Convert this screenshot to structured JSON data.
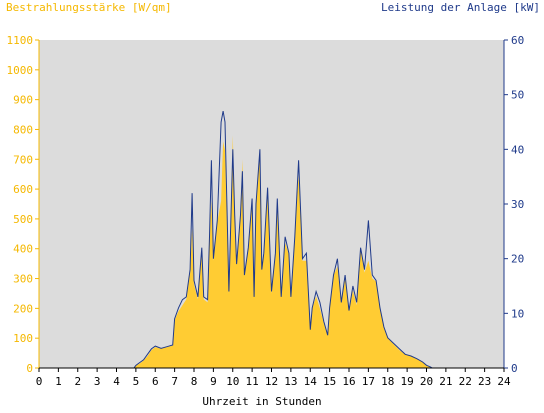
{
  "chart_data": {
    "type": "area",
    "title_left": "Bestrahlungsstärke [W/qm]",
    "title_right": "Leistung der Anlage [kW]",
    "xlabel": "Uhrzeit in Stunden",
    "x_ticks": [
      "0",
      "1",
      "2",
      "3",
      "4",
      "5",
      "6",
      "7",
      "8",
      "9",
      "10",
      "11",
      "12",
      "13",
      "14",
      "15",
      "16",
      "17",
      "18",
      "19",
      "20",
      "21",
      "22",
      "23",
      "24"
    ],
    "xlim": [
      0,
      24
    ],
    "y_left": {
      "label": "Bestrahlungsstärke [W/qm]",
      "ylim": [
        0,
        1100
      ],
      "ticks": [
        "0",
        "100",
        "200",
        "300",
        "400",
        "500",
        "600",
        "700",
        "800",
        "900",
        "1000",
        "1100"
      ]
    },
    "y_right": {
      "label": "Leistung der Anlage [kW]",
      "ylim": [
        0,
        60
      ],
      "ticks": [
        "0",
        "10",
        "20",
        "30",
        "40",
        "50",
        "60"
      ]
    },
    "grid": false,
    "colors": {
      "irradiance_fill": "#ffcc33",
      "power_line": "#1f3a8a",
      "plot_bg": "#dcdcdc",
      "left_axis_text": "#f5b800",
      "right_axis_text": "#1f3a8a",
      "x_axis_text": "#000000"
    },
    "series": [
      {
        "name": "Bestrahlungsstärke [W/qm]",
        "axis": "left",
        "style": "filled-area",
        "x": [
          0,
          4.9,
          5.0,
          5.2,
          5.4,
          5.6,
          5.8,
          6.0,
          6.3,
          6.6,
          6.9,
          7.0,
          7.2,
          7.4,
          7.6,
          7.8,
          7.9,
          8.0,
          8.2,
          8.4,
          8.5,
          8.7,
          8.8,
          8.9,
          9.0,
          9.2,
          9.4,
          9.5,
          9.6,
          9.8,
          10.0,
          10.1,
          10.2,
          10.4,
          10.5,
          10.6,
          10.8,
          11.0,
          11.1,
          11.2,
          11.4,
          11.5,
          11.6,
          11.8,
          12.0,
          12.2,
          12.3,
          12.5,
          12.7,
          12.9,
          13.0,
          13.2,
          13.4,
          13.6,
          13.8,
          14.0,
          14.1,
          14.3,
          14.5,
          14.7,
          14.9,
          15.0,
          15.2,
          15.4,
          15.6,
          15.8,
          16.0,
          16.2,
          16.4,
          16.6,
          16.8,
          17.0,
          17.2,
          17.4,
          17.6,
          17.8,
          18.0,
          18.3,
          18.6,
          18.9,
          19.2,
          19.5,
          19.8,
          20.0,
          20.2,
          20.3,
          24
        ],
        "values": [
          0,
          0,
          8,
          15,
          25,
          40,
          60,
          70,
          65,
          70,
          75,
          160,
          190,
          210,
          230,
          320,
          470,
          280,
          230,
          400,
          230,
          220,
          450,
          560,
          360,
          490,
          560,
          760,
          730,
          250,
          780,
          510,
          350,
          520,
          700,
          320,
          400,
          560,
          240,
          540,
          740,
          330,
          380,
          600,
          250,
          380,
          540,
          240,
          420,
          380,
          230,
          440,
          650,
          360,
          360,
          140,
          200,
          240,
          200,
          150,
          110,
          200,
          310,
          340,
          220,
          300,
          190,
          260,
          210,
          400,
          320,
          360,
          300,
          290,
          200,
          140,
          100,
          80,
          60,
          45,
          40,
          30,
          20,
          8,
          3,
          0,
          0
        ]
      },
      {
        "name": "Leistung der Anlage [kW]",
        "axis": "right",
        "style": "line",
        "x": [
          0,
          4.9,
          5.0,
          5.2,
          5.4,
          5.6,
          5.8,
          6.0,
          6.3,
          6.6,
          6.9,
          7.0,
          7.2,
          7.4,
          7.6,
          7.8,
          7.9,
          8.0,
          8.2,
          8.4,
          8.5,
          8.7,
          8.8,
          8.9,
          9.0,
          9.2,
          9.4,
          9.5,
          9.6,
          9.8,
          10.0,
          10.1,
          10.2,
          10.4,
          10.5,
          10.6,
          10.8,
          11.0,
          11.1,
          11.2,
          11.4,
          11.5,
          11.6,
          11.8,
          12.0,
          12.2,
          12.3,
          12.5,
          12.7,
          12.9,
          13.0,
          13.2,
          13.4,
          13.6,
          13.8,
          14.0,
          14.1,
          14.3,
          14.5,
          14.7,
          14.9,
          15.0,
          15.2,
          15.4,
          15.6,
          15.8,
          16.0,
          16.2,
          16.4,
          16.6,
          16.8,
          17.0,
          17.2,
          17.4,
          17.6,
          17.8,
          18.0,
          18.3,
          18.6,
          18.9,
          19.2,
          19.5,
          19.8,
          20.0,
          20.2,
          20.3,
          24
        ],
        "values": [
          0,
          0,
          0.5,
          1,
          1.5,
          2.5,
          3.5,
          4,
          3.6,
          3.9,
          4.2,
          9,
          11,
          12.5,
          13,
          18,
          32,
          16,
          13,
          22,
          13,
          12.5,
          24,
          38,
          20,
          27,
          45,
          47,
          45,
          14,
          40,
          28,
          19,
          28,
          36,
          17,
          22,
          31,
          13,
          30,
          40,
          18,
          21,
          33,
          14,
          21,
          31,
          13,
          24,
          21,
          13,
          24,
          38,
          20,
          21,
          7,
          11,
          14,
          12,
          8.5,
          6,
          11,
          17,
          20,
          12,
          17,
          10.5,
          15,
          12,
          22,
          18,
          27,
          17,
          16,
          11,
          7.5,
          5.5,
          4.5,
          3.5,
          2.5,
          2.2,
          1.7,
          1.1,
          0.5,
          0.2,
          0,
          0
        ]
      }
    ]
  }
}
